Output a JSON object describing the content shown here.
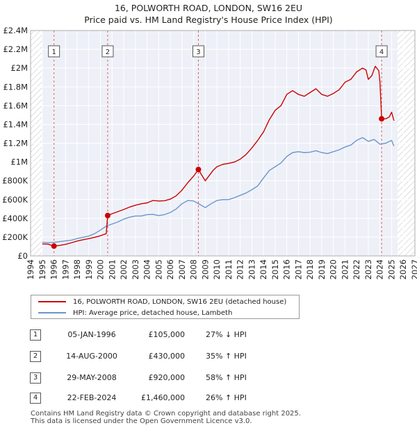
{
  "title_line1": "16, POLWORTH ROAD, LONDON, SW16 2EU",
  "title_line2": "Price paid vs. HM Land Registry's House Price Index (HPI)",
  "chart_data": {
    "type": "line",
    "title": "16, POLWORTH ROAD, LONDON, SW16 2EU - Price paid vs. HM Land Registry's House Price Index (HPI)",
    "xlabel": "",
    "ylabel": "",
    "xlim": [
      1994,
      2027
    ],
    "ylim": [
      0,
      2400000
    ],
    "x_ticks": [
      "1994",
      "1995",
      "1996",
      "1997",
      "1998",
      "1999",
      "2000",
      "2001",
      "2002",
      "2003",
      "2004",
      "2005",
      "2006",
      "2007",
      "2008",
      "2009",
      "2010",
      "2011",
      "2012",
      "2013",
      "2014",
      "2015",
      "2016",
      "2017",
      "2018",
      "2019",
      "2020",
      "2021",
      "2022",
      "2023",
      "2024",
      "2025",
      "2026",
      "2027"
    ],
    "y_ticks": [
      {
        "value": 0,
        "label": "£0"
      },
      {
        "value": 200000,
        "label": "£200K"
      },
      {
        "value": 400000,
        "label": "£400K"
      },
      {
        "value": 600000,
        "label": "£600K"
      },
      {
        "value": 800000,
        "label": "£800K"
      },
      {
        "value": 1000000,
        "label": "£1M"
      },
      {
        "value": 1200000,
        "label": "£1.2M"
      },
      {
        "value": 1400000,
        "label": "£1.4M"
      },
      {
        "value": 1600000,
        "label": "£1.6M"
      },
      {
        "value": 1800000,
        "label": "£1.8M"
      },
      {
        "value": 2000000,
        "label": "£2M"
      },
      {
        "value": 2200000,
        "label": "£2.2M"
      },
      {
        "value": 2400000,
        "label": "£2.4M"
      }
    ],
    "data_start_year": 1995,
    "data_end_year": 2025.5,
    "grid": true,
    "series": [
      {
        "name": "16, POLWORTH ROAD, LONDON, SW16 2EU (detached house)",
        "color": "#cc0000",
        "x": [
          1995.0,
          1995.5,
          1996.01,
          1996.5,
          1997.0,
          1997.5,
          1998.0,
          1998.5,
          1999.0,
          1999.5,
          2000.0,
          2000.5,
          2000.62,
          2001.0,
          2001.5,
          2002.0,
          2002.5,
          2003.0,
          2003.5,
          2004.0,
          2004.5,
          2005.0,
          2005.5,
          2006.0,
          2006.5,
          2007.0,
          2007.5,
          2008.0,
          2008.41,
          2008.7,
          2009.0,
          2009.3,
          2009.7,
          2010.0,
          2010.5,
          2011.0,
          2011.5,
          2012.0,
          2012.5,
          2013.0,
          2013.5,
          2014.0,
          2014.5,
          2015.0,
          2015.5,
          2016.0,
          2016.5,
          2017.0,
          2017.5,
          2018.0,
          2018.5,
          2019.0,
          2019.5,
          2020.0,
          2020.5,
          2021.0,
          2021.5,
          2022.0,
          2022.5,
          2022.8,
          2023.0,
          2023.3,
          2023.6,
          2023.9,
          2024.0,
          2024.14,
          2024.5,
          2024.8,
          2025.0,
          2025.2
        ],
        "values": [
          128000,
          125000,
          105000,
          112000,
          123000,
          140000,
          158000,
          172000,
          184000,
          198000,
          215000,
          238000,
          430000,
          450000,
          472000,
          495000,
          520000,
          540000,
          555000,
          565000,
          590000,
          585000,
          588000,
          605000,
          640000,
          700000,
          780000,
          850000,
          920000,
          860000,
          800000,
          850000,
          915000,
          950000,
          975000,
          985000,
          1000000,
          1030000,
          1080000,
          1150000,
          1230000,
          1320000,
          1450000,
          1550000,
          1600000,
          1720000,
          1760000,
          1720000,
          1700000,
          1740000,
          1780000,
          1720000,
          1700000,
          1730000,
          1770000,
          1850000,
          1880000,
          1960000,
          2000000,
          1980000,
          1880000,
          1920000,
          2020000,
          1970000,
          1850000,
          1460000,
          1460000,
          1480000,
          1530000,
          1440000
        ]
      },
      {
        "name": "HPI: Average price, detached house, Lambeth",
        "color": "#6a96cc",
        "x": [
          1995.0,
          1995.5,
          1996.0,
          1996.5,
          1997.0,
          1997.5,
          1998.0,
          1998.5,
          1999.0,
          1999.5,
          2000.0,
          2000.5,
          2001.0,
          2001.5,
          2002.0,
          2002.5,
          2003.0,
          2003.5,
          2004.0,
          2004.5,
          2005.0,
          2005.5,
          2006.0,
          2006.5,
          2007.0,
          2007.5,
          2008.0,
          2008.5,
          2009.0,
          2009.5,
          2010.0,
          2010.5,
          2011.0,
          2011.5,
          2012.0,
          2012.5,
          2013.0,
          2013.5,
          2014.0,
          2014.5,
          2015.0,
          2015.5,
          2016.0,
          2016.5,
          2017.0,
          2017.5,
          2018.0,
          2018.5,
          2019.0,
          2019.5,
          2020.0,
          2020.5,
          2021.0,
          2021.5,
          2022.0,
          2022.5,
          2023.0,
          2023.5,
          2024.0,
          2024.5,
          2025.0,
          2025.2
        ],
        "values": [
          145000,
          142000,
          145000,
          152000,
          160000,
          168000,
          185000,
          198000,
          212000,
          238000,
          275000,
          318000,
          340000,
          362000,
          392000,
          412000,
          425000,
          425000,
          440000,
          442000,
          430000,
          440000,
          462000,
          500000,
          555000,
          590000,
          585000,
          550000,
          515000,
          555000,
          590000,
          600000,
          600000,
          620000,
          645000,
          670000,
          705000,
          745000,
          830000,
          910000,
          950000,
          990000,
          1060000,
          1100000,
          1110000,
          1100000,
          1105000,
          1120000,
          1100000,
          1090000,
          1110000,
          1130000,
          1160000,
          1180000,
          1230000,
          1260000,
          1220000,
          1240000,
          1190000,
          1200000,
          1230000,
          1170000
        ]
      }
    ],
    "sale_points": [
      {
        "id": "1",
        "x": 1996.01,
        "value": 105000
      },
      {
        "id": "2",
        "x": 2000.62,
        "value": 430000
      },
      {
        "id": "3",
        "x": 2008.41,
        "value": 920000
      },
      {
        "id": "4",
        "x": 2024.14,
        "value": 1460000
      }
    ]
  },
  "legend": {
    "items": [
      {
        "label": "16, POLWORTH ROAD, LONDON, SW16 2EU (detached house)",
        "color": "#cc0000"
      },
      {
        "label": "HPI: Average price, detached house, Lambeth",
        "color": "#6a96cc"
      }
    ]
  },
  "transactions": [
    {
      "num": "1",
      "date": "05-JAN-1996",
      "price": "£105,000",
      "hpi": "27% ↓ HPI"
    },
    {
      "num": "2",
      "date": "14-AUG-2000",
      "price": "£430,000",
      "hpi": "35% ↑ HPI"
    },
    {
      "num": "3",
      "date": "29-MAY-2008",
      "price": "£920,000",
      "hpi": "58% ↑ HPI"
    },
    {
      "num": "4",
      "date": "22-FEB-2024",
      "price": "£1,460,000",
      "hpi": "26% ↑ HPI"
    }
  ],
  "footer": "Contains HM Land Registry data © Crown copyright and database right 2025.\nThis data is licensed under the Open Government Licence v3.0."
}
